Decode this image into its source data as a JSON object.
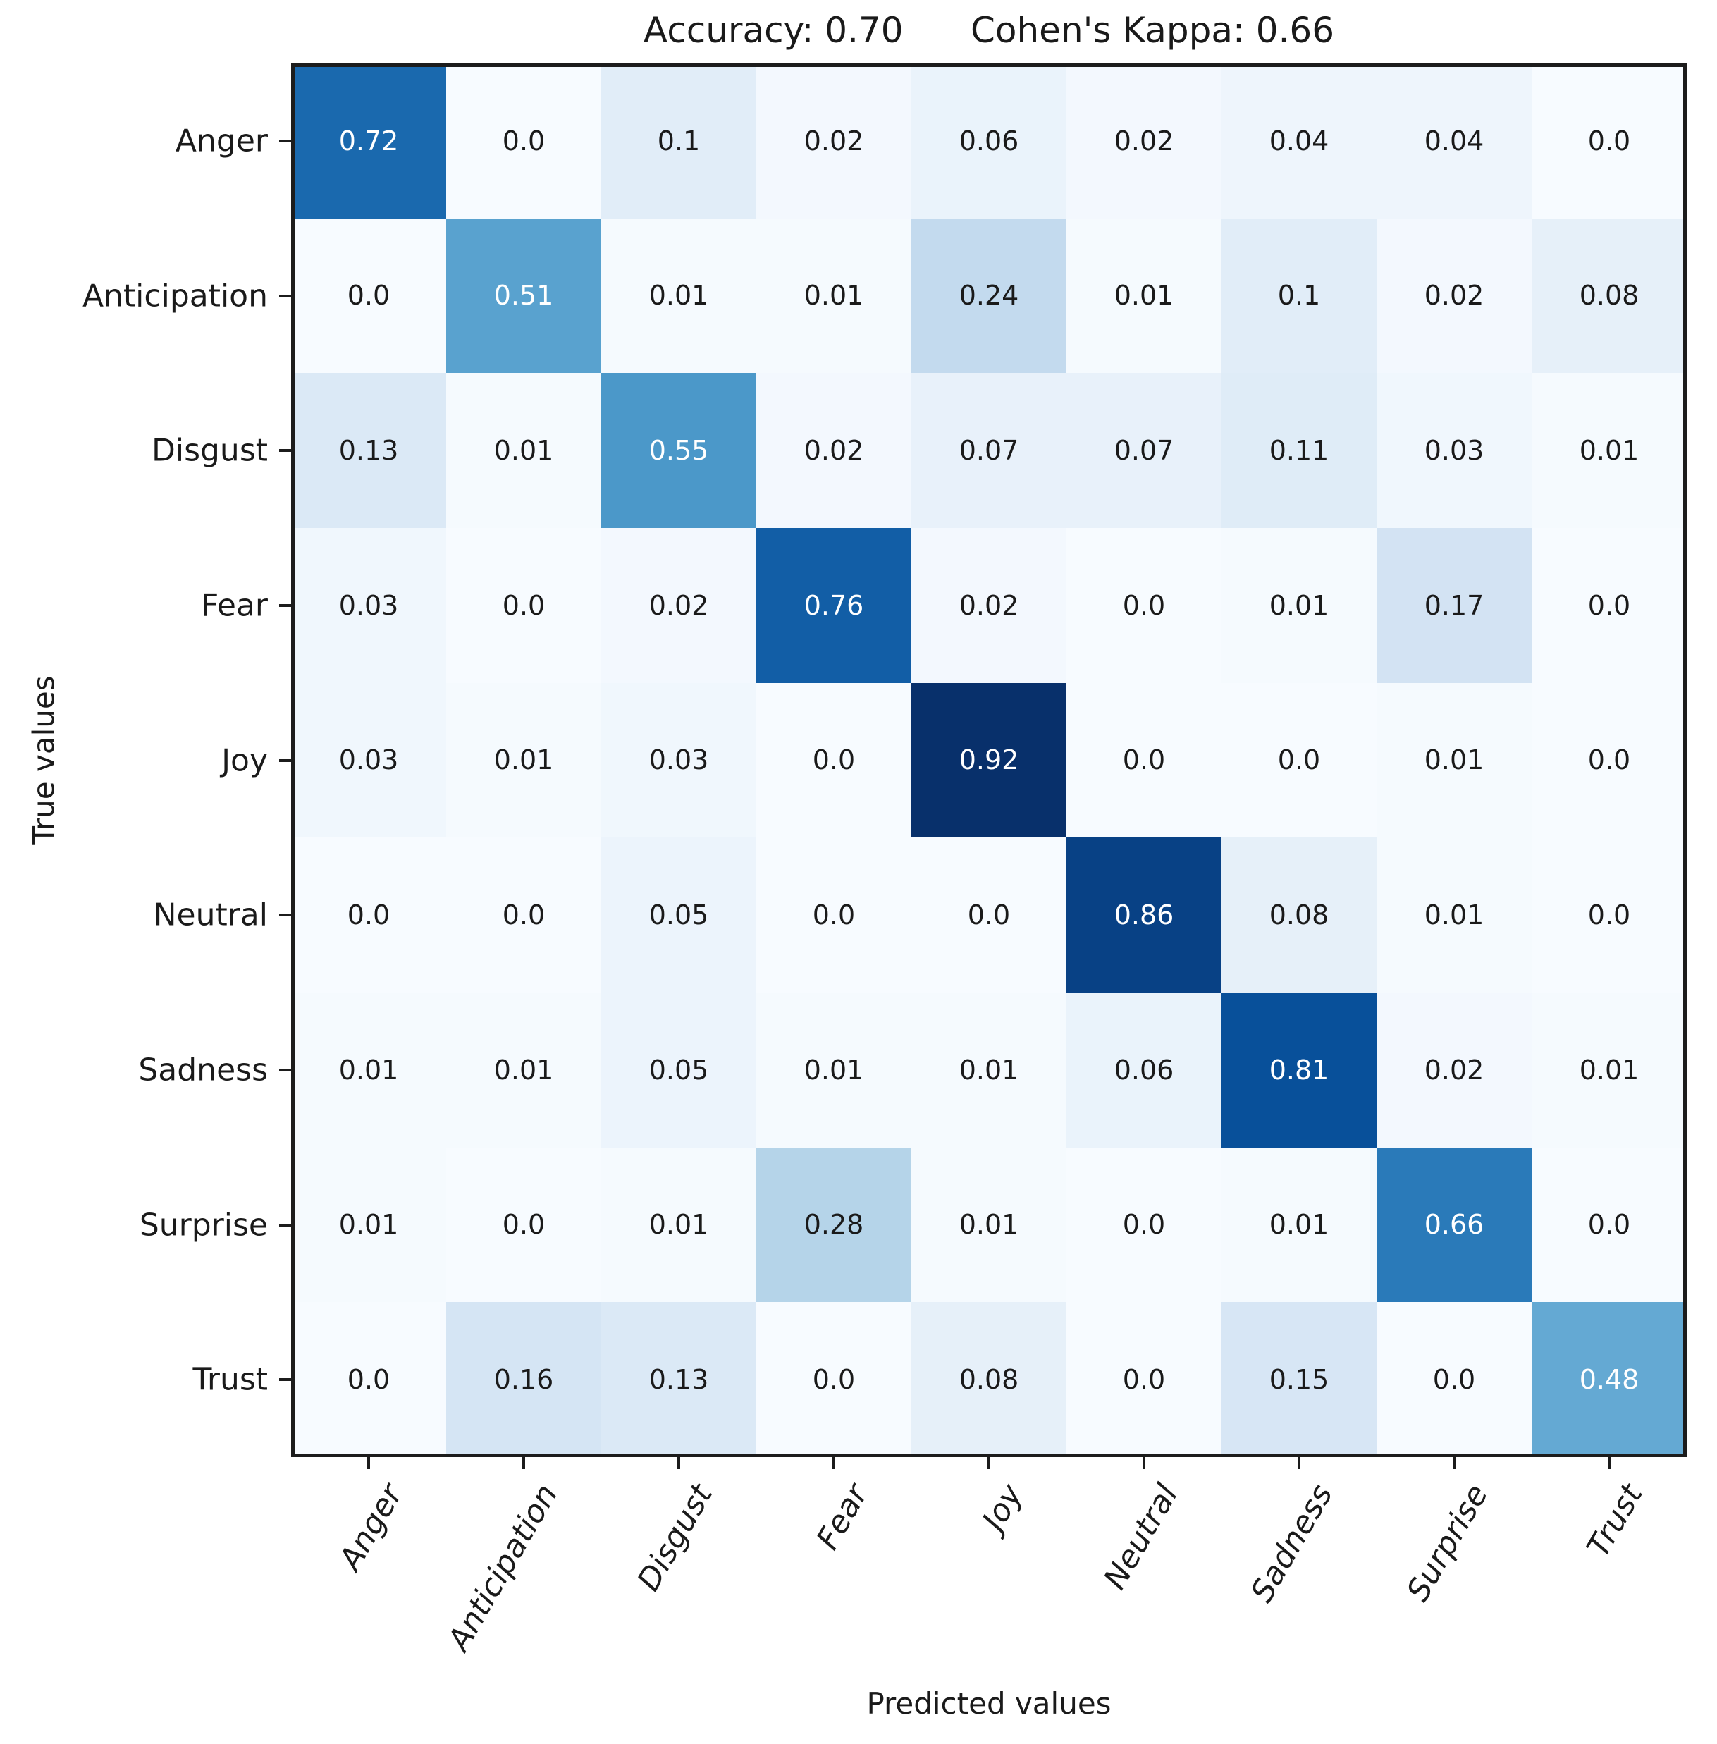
{
  "figure": {
    "title": "Accuracy: 0.70      Cohen's Kappa: 0.66",
    "xlabel": "Predicted values",
    "ylabel": "True values"
  },
  "chart_data": {
    "type": "heatmap",
    "subtype": "confusion-matrix",
    "title": "Accuracy: 0.70      Cohen's Kappa: 0.66",
    "accuracy": "0.70",
    "cohens_kappa": "0.66",
    "xlabel": "Predicted values",
    "ylabel": "True values",
    "x_categories": [
      "Anger",
      "Anticipation",
      "Disgust",
      "Fear",
      "Joy",
      "Neutral",
      "Sadness",
      "Surprise",
      "Trust"
    ],
    "y_categories": [
      "Anger",
      "Anticipation",
      "Disgust",
      "Fear",
      "Joy",
      "Neutral",
      "Sadness",
      "Surprise",
      "Trust"
    ],
    "matrix": [
      [
        0.72,
        0.0,
        0.1,
        0.02,
        0.06,
        0.02,
        0.04,
        0.04,
        0.0
      ],
      [
        0.0,
        0.51,
        0.01,
        0.01,
        0.24,
        0.01,
        0.1,
        0.02,
        0.08
      ],
      [
        0.13,
        0.01,
        0.55,
        0.02,
        0.07,
        0.07,
        0.11,
        0.03,
        0.01
      ],
      [
        0.03,
        0.0,
        0.02,
        0.76,
        0.02,
        0.0,
        0.01,
        0.17,
        0.0
      ],
      [
        0.03,
        0.01,
        0.03,
        0.0,
        0.92,
        0.0,
        0.0,
        0.01,
        0.0
      ],
      [
        0.0,
        0.0,
        0.05,
        0.0,
        0.0,
        0.86,
        0.08,
        0.01,
        0.0
      ],
      [
        0.01,
        0.01,
        0.05,
        0.01,
        0.01,
        0.06,
        0.81,
        0.02,
        0.01
      ],
      [
        0.01,
        0.0,
        0.01,
        0.28,
        0.01,
        0.0,
        0.01,
        0.66,
        0.0
      ],
      [
        0.0,
        0.16,
        0.13,
        0.0,
        0.08,
        0.0,
        0.15,
        0.0,
        0.48
      ]
    ],
    "vmin": 0.0,
    "vmax": 0.92,
    "grid": false,
    "legend": "none",
    "colormap": {
      "name": "Blues",
      "stops": [
        {
          "t": 0.0,
          "hex": "#f7fbff"
        },
        {
          "t": 0.125,
          "hex": "#deebf7"
        },
        {
          "t": 0.25,
          "hex": "#c6dbef"
        },
        {
          "t": 0.375,
          "hex": "#9ecae1"
        },
        {
          "t": 0.5,
          "hex": "#6baed6"
        },
        {
          "t": 0.625,
          "hex": "#4292c6"
        },
        {
          "t": 0.75,
          "hex": "#2171b5"
        },
        {
          "t": 0.875,
          "hex": "#08519c"
        },
        {
          "t": 1.0,
          "hex": "#08306b"
        }
      ]
    },
    "cell_text_color_dark": "#1a1a1a",
    "cell_text_color_light": "#ffffff",
    "axis_color": "#1c1c1c"
  }
}
